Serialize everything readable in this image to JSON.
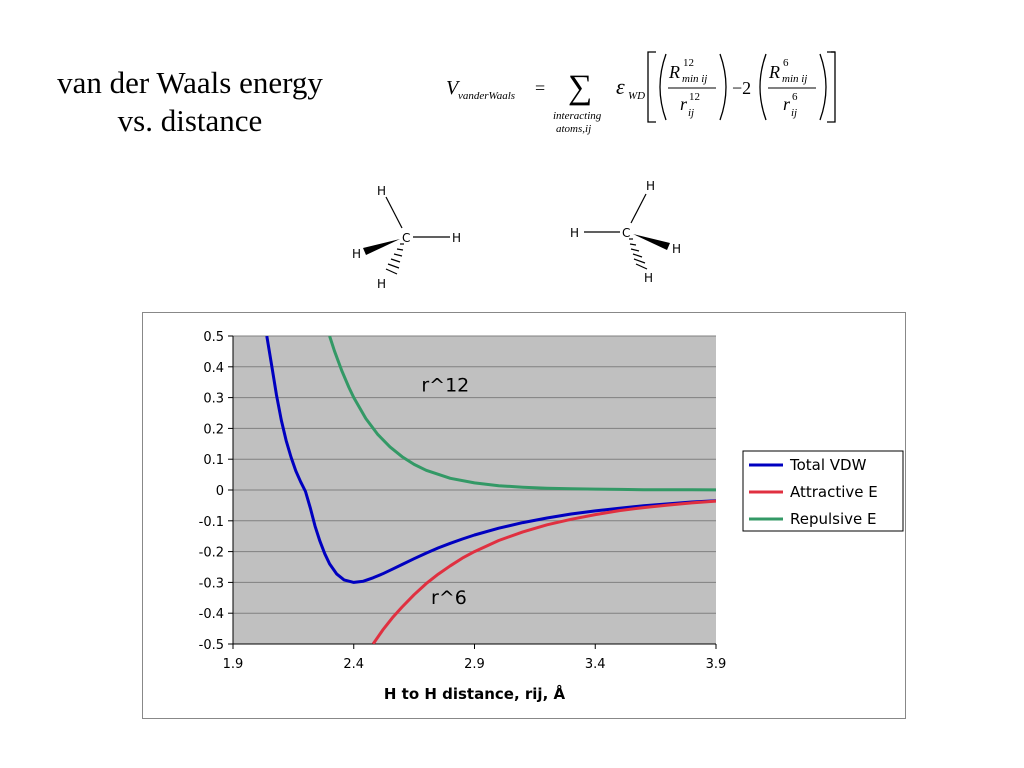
{
  "slide": {
    "title_line1": "van der Waals energy",
    "title_line2": "vs. distance"
  },
  "formula": {
    "lhs_symbol": "V",
    "lhs_subscript": "vanderWaals",
    "equals": "=",
    "sum_symbol": "∑",
    "sum_under_line1": "interacting",
    "sum_under_line2": "atoms,ij",
    "epsilon": "ε",
    "epsilon_subscript": "WD",
    "rmin_symbol": "R",
    "rmin_sub": "min ij",
    "r_symbol": "r",
    "r_sub": "ij",
    "exp12": "12",
    "exp6": "6",
    "minus_two": "−2"
  },
  "molecules": {
    "left": {
      "center": "C",
      "top": "H",
      "right": "H",
      "wedge": "H",
      "dash": "H"
    },
    "right": {
      "center": "C",
      "top": "H",
      "left": "H",
      "wedge": "H",
      "dash": "H"
    }
  },
  "chart_data": {
    "type": "line",
    "xlabel": "H to H distance, rij, Å",
    "ylabel": "",
    "xlim": [
      1.9,
      3.9
    ],
    "ylim": [
      -0.5,
      0.5
    ],
    "x_ticks": [
      "1.9",
      "2.4",
      "2.9",
      "3.4",
      "3.9"
    ],
    "y_ticks": [
      "0.5",
      "0.4",
      "0.3",
      "0.2",
      "0.1",
      "0",
      "-0.1",
      "-0.2",
      "-0.3",
      "-0.4",
      "-0.5"
    ],
    "grid": "horizontal",
    "legend_position": "right",
    "plot_background": "#c0c0c0",
    "annotations": [
      {
        "text": "r^12",
        "x": 2.68,
        "y": 0.32
      },
      {
        "text": "r^6",
        "x": 2.72,
        "y": -0.37
      }
    ],
    "series": [
      {
        "name": "Total VDW",
        "color": "#0000c0",
        "x": [
          2.04,
          2.06,
          2.08,
          2.1,
          2.12,
          2.14,
          2.16,
          2.18,
          2.2,
          2.22,
          2.24,
          2.26,
          2.28,
          2.3,
          2.33,
          2.36,
          2.4,
          2.44,
          2.48,
          2.52,
          2.56,
          2.6,
          2.65,
          2.7,
          2.75,
          2.8,
          2.85,
          2.9,
          3.0,
          3.1,
          3.2,
          3.3,
          3.4,
          3.5,
          3.6,
          3.7,
          3.8,
          3.9
        ],
        "y": [
          0.5,
          0.406,
          0.308,
          0.227,
          0.161,
          0.107,
          0.062,
          0.027,
          -0.005,
          -0.058,
          -0.118,
          -0.166,
          -0.207,
          -0.24,
          -0.273,
          -0.292,
          -0.3,
          -0.296,
          -0.285,
          -0.272,
          -0.257,
          -0.242,
          -0.223,
          -0.205,
          -0.188,
          -0.173,
          -0.159,
          -0.146,
          -0.124,
          -0.106,
          -0.091,
          -0.078,
          -0.068,
          -0.059,
          -0.051,
          -0.045,
          -0.039,
          -0.035
        ]
      },
      {
        "name": "Attractive E",
        "color": "#e03040",
        "x": [
          2.48,
          2.52,
          2.56,
          2.6,
          2.65,
          2.7,
          2.75,
          2.8,
          2.85,
          2.9,
          3.0,
          3.1,
          3.2,
          3.3,
          3.4,
          3.5,
          3.6,
          3.7,
          3.8,
          3.9
        ],
        "y": [
          -0.5,
          -0.455,
          -0.415,
          -0.38,
          -0.34,
          -0.304,
          -0.273,
          -0.246,
          -0.221,
          -0.2,
          -0.164,
          -0.136,
          -0.113,
          -0.095,
          -0.08,
          -0.067,
          -0.057,
          -0.049,
          -0.042,
          -0.036
        ]
      },
      {
        "name": "Repulsive E",
        "color": "#339966",
        "x": [
          2.3,
          2.32,
          2.35,
          2.38,
          2.4,
          2.45,
          2.5,
          2.55,
          2.6,
          2.65,
          2.7,
          2.8,
          2.9,
          3.0,
          3.1,
          3.2,
          3.3,
          3.4,
          3.5,
          3.6,
          3.7,
          3.8,
          3.9
        ],
        "y": [
          0.5,
          0.452,
          0.388,
          0.333,
          0.3,
          0.232,
          0.18,
          0.14,
          0.108,
          0.083,
          0.064,
          0.038,
          0.023,
          0.014,
          0.009,
          0.006,
          0.004,
          0.003,
          0.002,
          0.001,
          0.001,
          0.0005,
          0.0003
        ]
      }
    ]
  }
}
